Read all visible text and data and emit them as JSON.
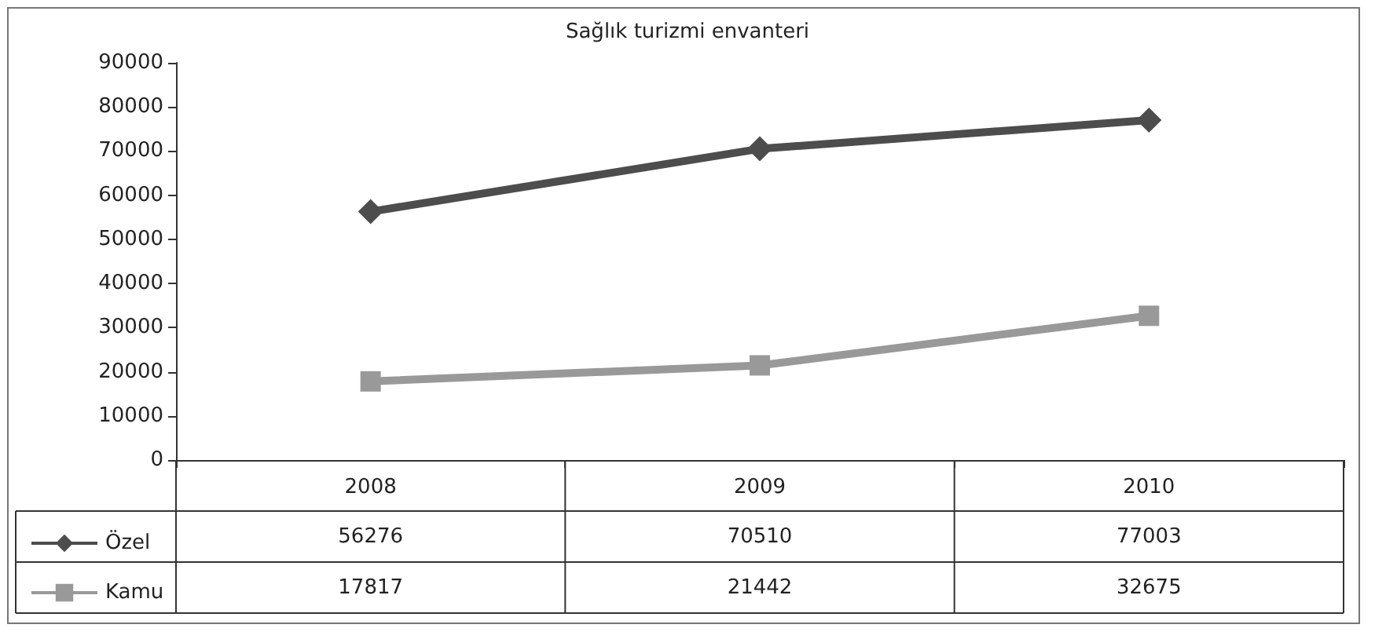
{
  "chart_data": {
    "type": "line",
    "title": "Sağlık turizmi envanteri",
    "categories": [
      "2008",
      "2009",
      "2010"
    ],
    "series": [
      {
        "name": "Özel",
        "color": "#4d4d4d",
        "marker": "diamond",
        "values": [
          56276,
          70510,
          77003
        ]
      },
      {
        "name": "Kamu",
        "color": "#999999",
        "marker": "square",
        "values": [
          17817,
          21442,
          32675
        ]
      }
    ],
    "ylim": [
      0,
      90000
    ],
    "yticks": [
      0,
      10000,
      20000,
      30000,
      40000,
      50000,
      60000,
      70000,
      80000,
      90000
    ],
    "grid": false,
    "legend": "bottom left",
    "data_labels": true
  }
}
